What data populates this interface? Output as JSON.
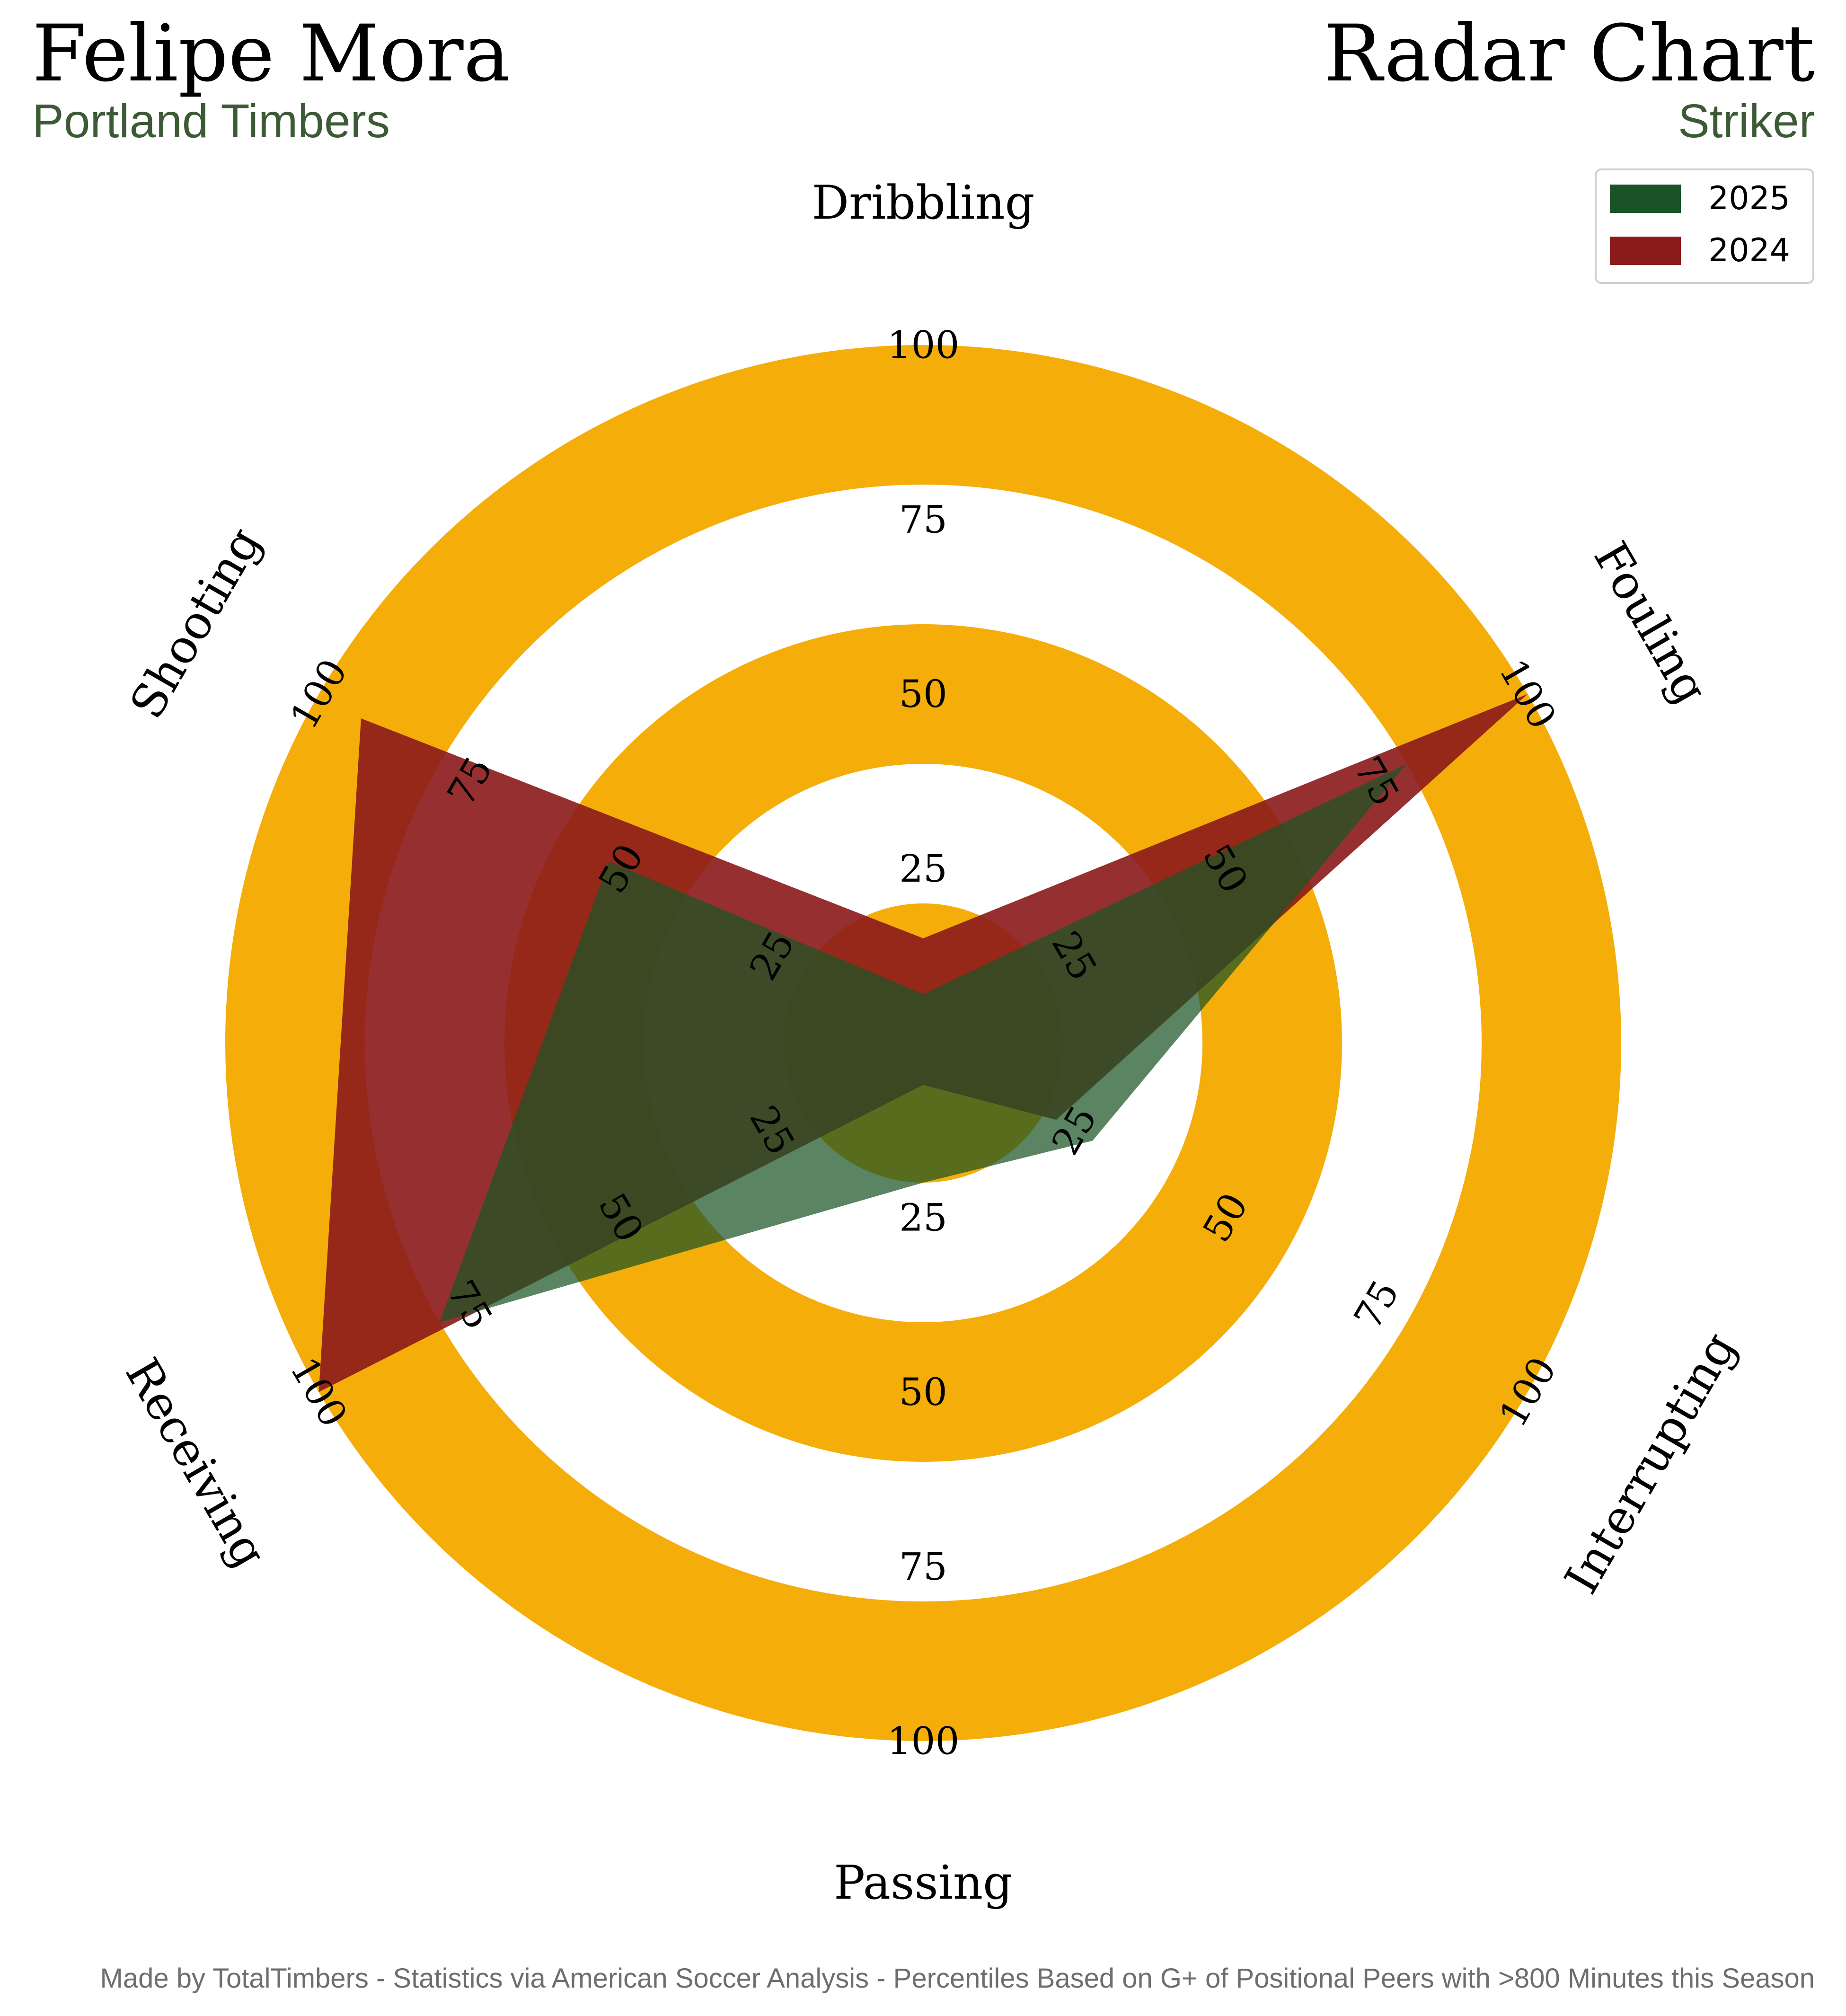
{
  "header": {
    "player": "Felipe Mora",
    "team": "Portland Timbers",
    "chart_name": "Radar Chart",
    "position": "Striker"
  },
  "footer": "Made by TotalTimbers - Statistics via American Soccer Analysis - Percentiles Based on G+ of Positional Peers with >800 Minutes this Season",
  "colors": {
    "ring": "#f5ad0a",
    "series_2025": "#1a5426",
    "series_2024": "#8b1a1a",
    "subtitle": "#3c5a35"
  },
  "chart_data": {
    "type": "radar",
    "categories": [
      "Dribbling",
      "Fouling",
      "Interrupting",
      "Passing",
      "Receiving",
      "Shooting"
    ],
    "range": [
      0,
      100
    ],
    "ticks": [
      "25",
      "50",
      "75",
      "100"
    ],
    "legend": {
      "position": "top-right"
    },
    "series": [
      {
        "name": "2025",
        "values": [
          7,
          80,
          28,
          20,
          80,
          52
        ]
      },
      {
        "name": "2024",
        "values": [
          15,
          100,
          22,
          6,
          100,
          93
        ]
      }
    ]
  }
}
